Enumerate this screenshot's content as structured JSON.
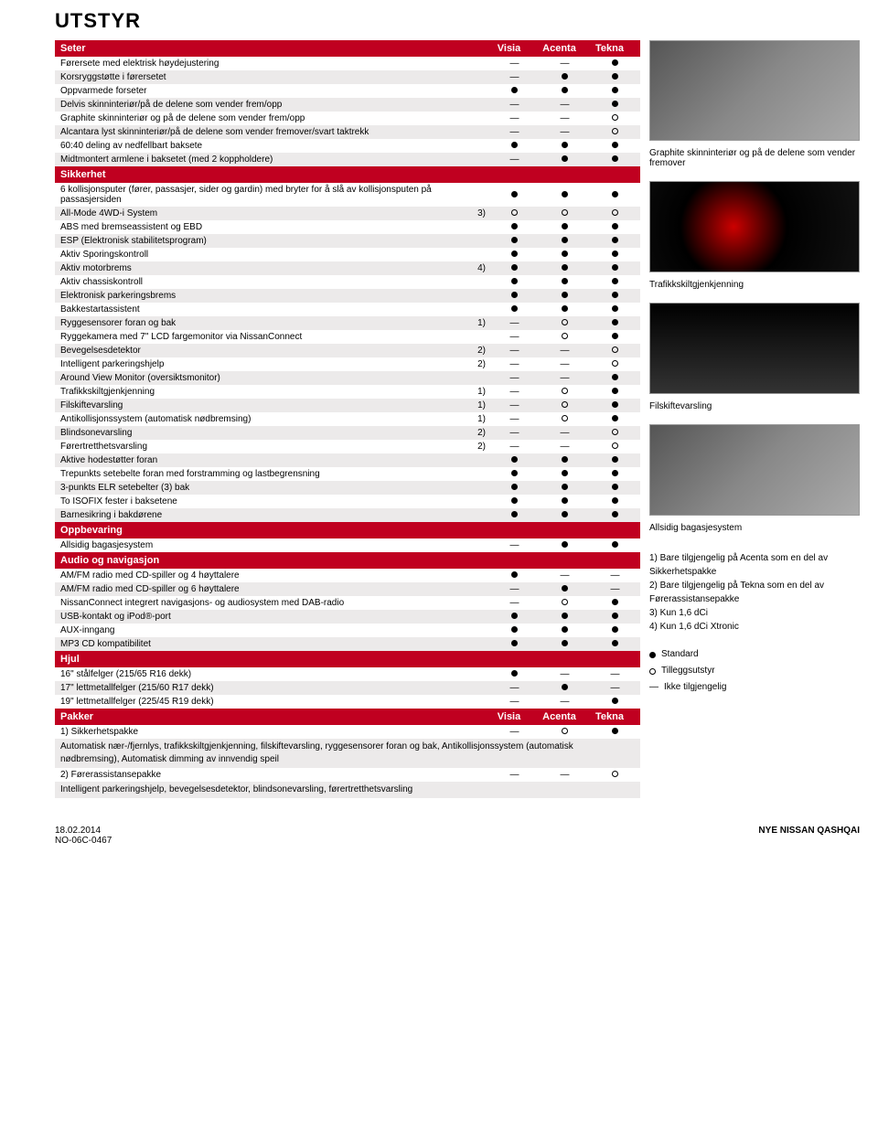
{
  "page_title": "UTSTYR",
  "trim_cols": [
    "Visia",
    "Acenta",
    "Tekna"
  ],
  "symbols": {
    "std": "●",
    "opt": "○",
    "na": "—"
  },
  "sections": [
    {
      "title": "Seter",
      "show_cols": true,
      "rows": [
        {
          "label": "Førersete med elektrisk høydejustering",
          "note": "",
          "vals": [
            "na",
            "na",
            "std"
          ]
        },
        {
          "label": "Korsryggstøtte i førersetet",
          "note": "",
          "vals": [
            "na",
            "std",
            "std"
          ]
        },
        {
          "label": "Oppvarmede forseter",
          "note": "",
          "vals": [
            "std",
            "std",
            "std"
          ]
        },
        {
          "label": "Delvis skinninteriør/på de delene som vender frem/opp",
          "note": "",
          "vals": [
            "na",
            "na",
            "std"
          ]
        },
        {
          "label": "Graphite skinninteriør og på de delene som vender frem/opp",
          "note": "",
          "vals": [
            "na",
            "na",
            "opt"
          ]
        },
        {
          "label": "Alcantara lyst skinninteriør/på de delene som vender fremover/svart taktrekk",
          "note": "",
          "vals": [
            "na",
            "na",
            "opt"
          ]
        },
        {
          "label": "60:40 deling av nedfellbart baksete",
          "note": "",
          "vals": [
            "std",
            "std",
            "std"
          ]
        },
        {
          "label": "Midtmontert armlene i baksetet (med 2 koppholdere)",
          "note": "",
          "vals": [
            "na",
            "std",
            "std"
          ]
        }
      ]
    },
    {
      "title": "Sikkerhet",
      "show_cols": false,
      "rows": [
        {
          "label": "6 kollisjonsputer (fører, passasjer, sider og gardin) med bryter for å slå av kollisjonsputen på passasjersiden",
          "note": "",
          "vals": [
            "std",
            "std",
            "std"
          ]
        },
        {
          "label": "All-Mode 4WD-i System",
          "note": "3)",
          "vals": [
            "opt",
            "opt",
            "opt"
          ]
        },
        {
          "label": "ABS med bremseassistent og EBD",
          "note": "",
          "vals": [
            "std",
            "std",
            "std"
          ]
        },
        {
          "label": "ESP (Elektronisk stabilitetsprogram)",
          "note": "",
          "vals": [
            "std",
            "std",
            "std"
          ]
        },
        {
          "label": "Aktiv Sporingskontroll",
          "note": "",
          "vals": [
            "std",
            "std",
            "std"
          ]
        },
        {
          "label": "Aktiv motorbrems",
          "note": "4)",
          "vals": [
            "std",
            "std",
            "std"
          ]
        },
        {
          "label": "Aktiv chassiskontroll",
          "note": "",
          "vals": [
            "std",
            "std",
            "std"
          ]
        },
        {
          "label": "Elektronisk parkeringsbrems",
          "note": "",
          "vals": [
            "std",
            "std",
            "std"
          ]
        },
        {
          "label": "Bakkestartassistent",
          "note": "",
          "vals": [
            "std",
            "std",
            "std"
          ]
        },
        {
          "label": "Ryggesensorer foran og bak",
          "note": "1)",
          "vals": [
            "na",
            "opt",
            "std"
          ]
        },
        {
          "label": "Ryggekamera med 7\" LCD fargemonitor via NissanConnect",
          "note": "",
          "vals": [
            "na",
            "opt",
            "std"
          ]
        },
        {
          "label": "Bevegelsesdetektor",
          "note": "2)",
          "vals": [
            "na",
            "na",
            "opt"
          ]
        },
        {
          "label": "Intelligent parkeringshjelp",
          "note": "2)",
          "vals": [
            "na",
            "na",
            "opt"
          ]
        },
        {
          "label": "Around View Monitor (oversiktsmonitor)",
          "note": "",
          "vals": [
            "na",
            "na",
            "std"
          ]
        },
        {
          "label": "Trafikkskiltgjenkjenning",
          "note": "1)",
          "vals": [
            "na",
            "opt",
            "std"
          ]
        },
        {
          "label": "Filskiftevarsling",
          "note": "1)",
          "vals": [
            "na",
            "opt",
            "std"
          ]
        },
        {
          "label": "Antikollisjonssystem (automatisk nødbremsing)",
          "note": "1)",
          "vals": [
            "na",
            "opt",
            "std"
          ]
        },
        {
          "label": "Blindsonevarsling",
          "note": "2)",
          "vals": [
            "na",
            "na",
            "opt"
          ]
        },
        {
          "label": "Førertretthetsvarsling",
          "note": "2)",
          "vals": [
            "na",
            "na",
            "opt"
          ]
        },
        {
          "label": "Aktive hodestøtter foran",
          "note": "",
          "vals": [
            "std",
            "std",
            "std"
          ]
        },
        {
          "label": "Trepunkts setebelte foran med forstramming og lastbegrensning",
          "note": "",
          "vals": [
            "std",
            "std",
            "std"
          ]
        },
        {
          "label": "3-punkts ELR setebelter (3) bak",
          "note": "",
          "vals": [
            "std",
            "std",
            "std"
          ]
        },
        {
          "label": "To ISOFIX fester i baksetene",
          "note": "",
          "vals": [
            "std",
            "std",
            "std"
          ]
        },
        {
          "label": "Barnesikring i bakdørene",
          "note": "",
          "vals": [
            "std",
            "std",
            "std"
          ]
        }
      ]
    },
    {
      "title": "Oppbevaring",
      "show_cols": false,
      "rows": [
        {
          "label": "Allsidig bagasjesystem",
          "note": "",
          "vals": [
            "na",
            "std",
            "std"
          ]
        }
      ]
    },
    {
      "title": "Audio og navigasjon",
      "show_cols": false,
      "rows": [
        {
          "label": "AM/FM radio med CD-spiller og 4 høyttalere",
          "note": "",
          "vals": [
            "std",
            "na",
            "na"
          ]
        },
        {
          "label": "AM/FM radio med CD-spiller og 6 høyttalere",
          "note": "",
          "vals": [
            "na",
            "std",
            "na"
          ]
        },
        {
          "label": "NissanConnect integrert navigasjons- og audiosystem med DAB-radio",
          "note": "",
          "vals": [
            "na",
            "opt",
            "std"
          ]
        },
        {
          "label": "USB-kontakt og iPod®-port",
          "note": "",
          "vals": [
            "std",
            "std",
            "std"
          ]
        },
        {
          "label": "AUX-inngang",
          "note": "",
          "vals": [
            "std",
            "std",
            "std"
          ]
        },
        {
          "label": "MP3 CD kompatibilitet",
          "note": "",
          "vals": [
            "std",
            "std",
            "std"
          ]
        }
      ]
    },
    {
      "title": "Hjul",
      "show_cols": false,
      "rows": [
        {
          "label": "16\" stålfelger (215/65 R16 dekk)",
          "note": "",
          "vals": [
            "std",
            "na",
            "na"
          ]
        },
        {
          "label": "17\" lettmetallfelger (215/60 R17 dekk)",
          "note": "",
          "vals": [
            "na",
            "std",
            "na"
          ]
        },
        {
          "label": "19\" lettmetallfelger (225/45 R19 dekk)",
          "note": "",
          "vals": [
            "na",
            "na",
            "std"
          ]
        }
      ]
    }
  ],
  "pakker": {
    "title": "Pakker",
    "rows": [
      {
        "label": "1) Sikkerhetspakke",
        "vals": [
          "na",
          "opt",
          "std"
        ],
        "desc": "Automatisk nær-/fjernlys, trafikkskiltgjenkjenning, filskiftevarsling, ryggesensorer foran og bak, Antikollisjonssystem (automatisk nødbremsing), Automatisk dimming av innvendig speil"
      },
      {
        "label": "2) Førerassistansepakke",
        "vals": [
          "na",
          "na",
          "opt"
        ],
        "desc": "Intelligent parkeringshjelp, bevegelsesdetektor, blindsonevarsling, førertretthetsvarsling"
      }
    ]
  },
  "captions": {
    "seats": "Graphite skinninteriør og på de delene som vender fremover",
    "detector": "Trafikkskiltgjenkjenning",
    "lane": "Filskiftevarsling",
    "trunk": "Allsidig bagasjesystem"
  },
  "footnotes": [
    "1) Bare tilgjengelig på Acenta som en del av Sikkerhetspakke",
    "2) Bare tilgjengelig på Tekna som en del av Førerassistansepakke",
    "3) Kun 1,6 dCi",
    "4) Kun 1,6 dCi Xtronic"
  ],
  "legend": {
    "std": "Standard",
    "opt": "Tilleggsutstyr",
    "na": "Ikke tilgjengelig"
  },
  "footer": {
    "date": "18.02.2014",
    "code": "NO-06C-0467",
    "model": "NYE NISSAN QASHQAI"
  }
}
